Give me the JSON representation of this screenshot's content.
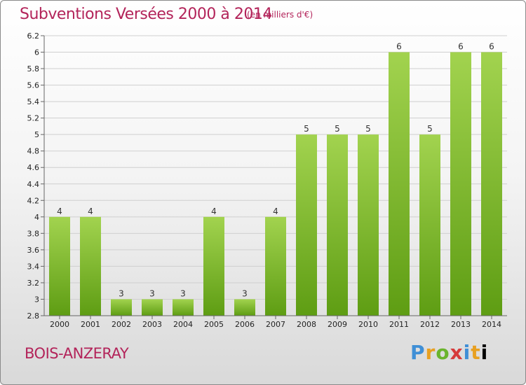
{
  "header": {
    "title": "Subventions Versées 2000 à 2014",
    "subtitle": "(en milliers d'€)"
  },
  "footer": {
    "commune": "BOIS-ANZERAY",
    "logo": "Proxiti"
  },
  "colors": {
    "accent": "#b3245a",
    "bar_top": "#a2d34f",
    "bar_bottom": "#5e9d13"
  },
  "chart_data": {
    "type": "bar",
    "title": "Subventions Versées 2000 à 2014",
    "subtitle": "(en milliers d'€)",
    "categories": [
      "2000",
      "2001",
      "2002",
      "2003",
      "2004",
      "2005",
      "2006",
      "2007",
      "2008",
      "2009",
      "2010",
      "2011",
      "2012",
      "2013",
      "2014"
    ],
    "values": [
      4,
      4,
      3,
      3,
      3,
      4,
      3,
      4,
      5,
      5,
      5,
      6,
      5,
      6,
      6
    ],
    "data_labels": [
      "4",
      "4",
      "3",
      "3",
      "3",
      "4",
      "3",
      "4",
      "5",
      "5",
      "5",
      "6",
      "5",
      "6",
      "6"
    ],
    "y_ticks": [
      "2.8",
      "3",
      "3.2",
      "3.4",
      "3.6",
      "3.8",
      "4",
      "4.2",
      "4.4",
      "4.6",
      "4.8",
      "5",
      "5.2",
      "5.4",
      "5.6",
      "5.8",
      "6",
      "6.2"
    ],
    "grid": true,
    "legend": "none"
  }
}
